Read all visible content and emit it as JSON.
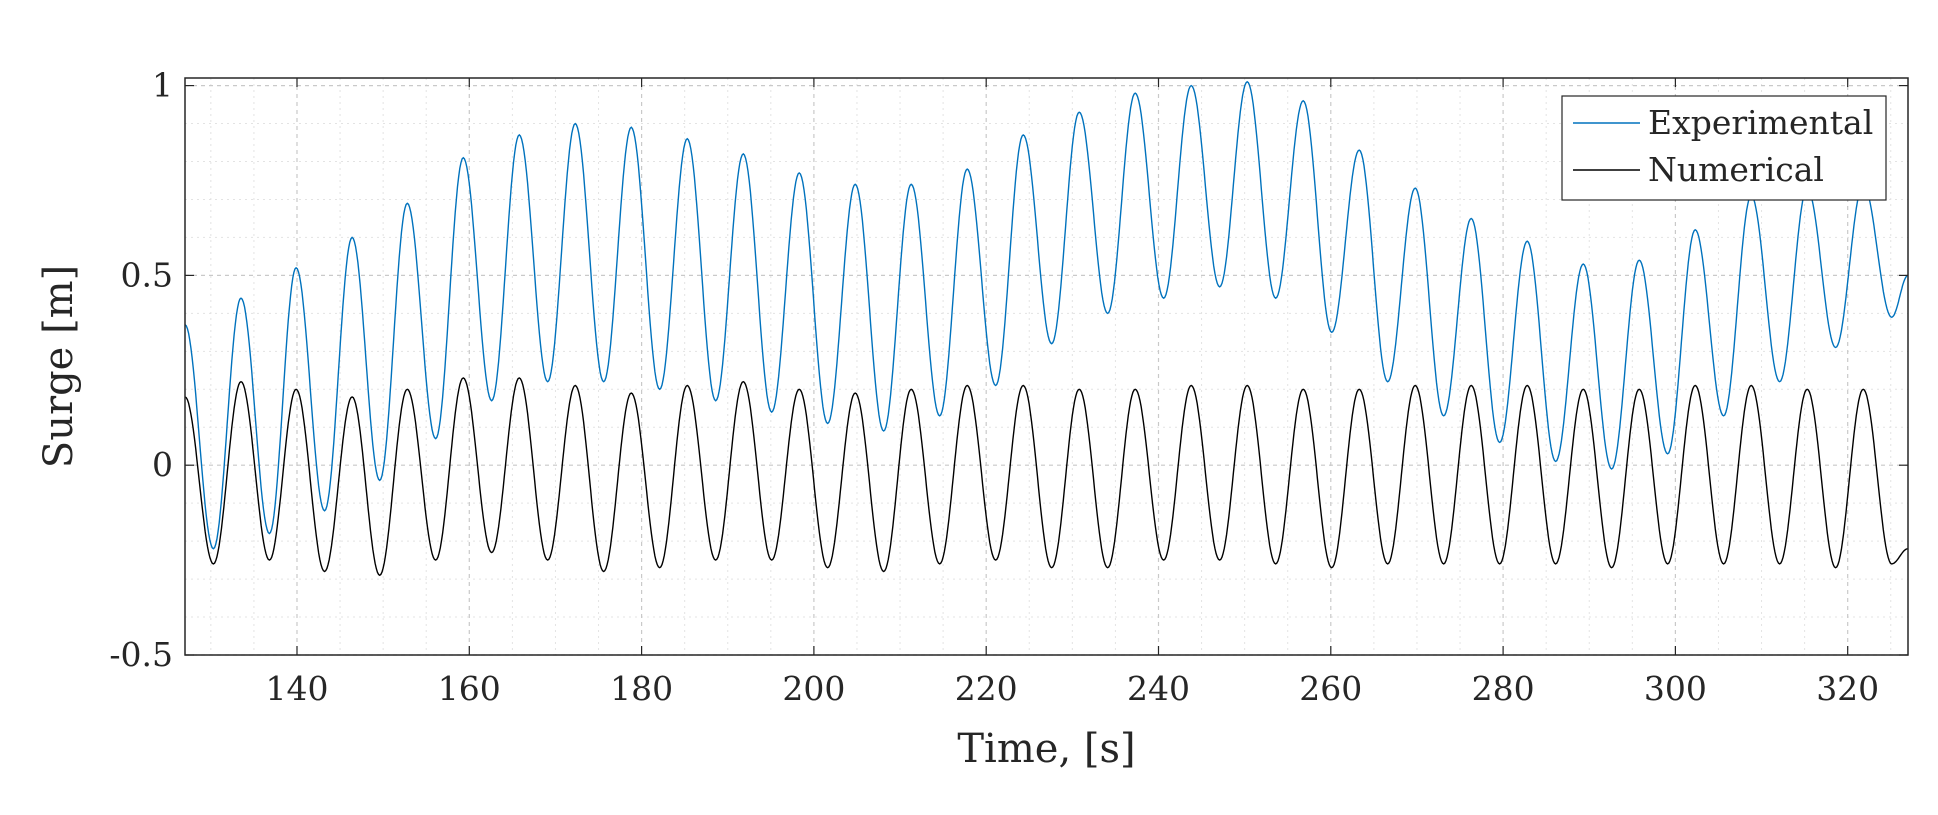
{
  "chart_data": {
    "type": "line",
    "xlabel": "Time, [s]",
    "ylabel": "Surge [m]",
    "xlim": [
      127,
      327
    ],
    "ylim": [
      -0.5,
      1.02
    ],
    "xticks": [
      140,
      160,
      180,
      200,
      220,
      240,
      260,
      280,
      300,
      320
    ],
    "xtick_labels": [
      "140",
      "160",
      "180",
      "200",
      "220",
      "240",
      "260",
      "280",
      "300",
      "320"
    ],
    "yticks": [
      -0.5,
      0,
      0.5,
      1
    ],
    "ytick_labels": [
      "-0.5",
      "0",
      "0.5",
      "1"
    ],
    "grid": true,
    "minor_grid": true,
    "legend_position": "top-right",
    "series": [
      {
        "name": "Experimental",
        "color": "#0072bd",
        "peaks": [
          {
            "t": 133.5,
            "v": 0.44
          },
          {
            "t": 139.9,
            "v": 0.52
          },
          {
            "t": 146.4,
            "v": 0.6
          },
          {
            "t": 152.8,
            "v": 0.69
          },
          {
            "t": 159.3,
            "v": 0.81
          },
          {
            "t": 165.8,
            "v": 0.87
          },
          {
            "t": 172.3,
            "v": 0.9
          },
          {
            "t": 178.8,
            "v": 0.89
          },
          {
            "t": 185.3,
            "v": 0.86
          },
          {
            "t": 191.8,
            "v": 0.82
          },
          {
            "t": 198.3,
            "v": 0.77
          },
          {
            "t": 204.8,
            "v": 0.74
          },
          {
            "t": 211.3,
            "v": 0.74
          },
          {
            "t": 217.8,
            "v": 0.78
          },
          {
            "t": 224.3,
            "v": 0.87
          },
          {
            "t": 230.8,
            "v": 0.93
          },
          {
            "t": 237.3,
            "v": 0.98
          },
          {
            "t": 243.8,
            "v": 1.0
          },
          {
            "t": 250.3,
            "v": 1.01
          },
          {
            "t": 256.8,
            "v": 0.96
          },
          {
            "t": 263.3,
            "v": 0.83
          },
          {
            "t": 269.8,
            "v": 0.73
          },
          {
            "t": 276.3,
            "v": 0.65
          },
          {
            "t": 282.8,
            "v": 0.59
          },
          {
            "t": 289.3,
            "v": 0.53
          },
          {
            "t": 295.8,
            "v": 0.54
          },
          {
            "t": 302.3,
            "v": 0.62
          },
          {
            "t": 308.8,
            "v": 0.71
          },
          {
            "t": 315.3,
            "v": 0.73
          },
          {
            "t": 321.8,
            "v": 0.74
          }
        ],
        "troughs": [
          {
            "t": 127.0,
            "v": 0.37
          },
          {
            "t": 130.3,
            "v": -0.22
          },
          {
            "t": 136.8,
            "v": -0.18
          },
          {
            "t": 143.2,
            "v": -0.12
          },
          {
            "t": 149.6,
            "v": -0.04
          },
          {
            "t": 156.1,
            "v": 0.07
          },
          {
            "t": 162.6,
            "v": 0.17
          },
          {
            "t": 169.1,
            "v": 0.22
          },
          {
            "t": 175.6,
            "v": 0.22
          },
          {
            "t": 182.1,
            "v": 0.2
          },
          {
            "t": 188.6,
            "v": 0.17
          },
          {
            "t": 195.1,
            "v": 0.14
          },
          {
            "t": 201.6,
            "v": 0.11
          },
          {
            "t": 208.1,
            "v": 0.09
          },
          {
            "t": 214.6,
            "v": 0.13
          },
          {
            "t": 221.1,
            "v": 0.21
          },
          {
            "t": 227.6,
            "v": 0.32
          },
          {
            "t": 234.1,
            "v": 0.4
          },
          {
            "t": 240.6,
            "v": 0.44
          },
          {
            "t": 247.1,
            "v": 0.47
          },
          {
            "t": 253.6,
            "v": 0.44
          },
          {
            "t": 260.1,
            "v": 0.35
          },
          {
            "t": 266.6,
            "v": 0.22
          },
          {
            "t": 273.1,
            "v": 0.13
          },
          {
            "t": 279.6,
            "v": 0.06
          },
          {
            "t": 286.1,
            "v": 0.01
          },
          {
            "t": 292.6,
            "v": -0.01
          },
          {
            "t": 299.1,
            "v": 0.03
          },
          {
            "t": 305.6,
            "v": 0.13
          },
          {
            "t": 312.1,
            "v": 0.22
          },
          {
            "t": 318.6,
            "v": 0.31
          },
          {
            "t": 325.1,
            "v": 0.39
          },
          {
            "t": 327.0,
            "v": 0.5
          }
        ]
      },
      {
        "name": "Numerical",
        "color": "#000000",
        "peaks": [
          {
            "t": 133.5,
            "v": 0.22
          },
          {
            "t": 139.9,
            "v": 0.2
          },
          {
            "t": 146.4,
            "v": 0.18
          },
          {
            "t": 152.8,
            "v": 0.2
          },
          {
            "t": 159.3,
            "v": 0.23
          },
          {
            "t": 165.8,
            "v": 0.23
          },
          {
            "t": 172.3,
            "v": 0.21
          },
          {
            "t": 178.8,
            "v": 0.19
          },
          {
            "t": 185.3,
            "v": 0.21
          },
          {
            "t": 191.8,
            "v": 0.22
          },
          {
            "t": 198.3,
            "v": 0.2
          },
          {
            "t": 204.8,
            "v": 0.19
          },
          {
            "t": 211.3,
            "v": 0.2
          },
          {
            "t": 217.8,
            "v": 0.21
          },
          {
            "t": 224.3,
            "v": 0.21
          },
          {
            "t": 230.8,
            "v": 0.2
          },
          {
            "t": 237.3,
            "v": 0.2
          },
          {
            "t": 243.8,
            "v": 0.21
          },
          {
            "t": 250.3,
            "v": 0.21
          },
          {
            "t": 256.8,
            "v": 0.2
          },
          {
            "t": 263.3,
            "v": 0.2
          },
          {
            "t": 269.8,
            "v": 0.21
          },
          {
            "t": 276.3,
            "v": 0.21
          },
          {
            "t": 282.8,
            "v": 0.21
          },
          {
            "t": 289.3,
            "v": 0.2
          },
          {
            "t": 295.8,
            "v": 0.2
          },
          {
            "t": 302.3,
            "v": 0.21
          },
          {
            "t": 308.8,
            "v": 0.21
          },
          {
            "t": 315.3,
            "v": 0.2
          },
          {
            "t": 321.8,
            "v": 0.2
          }
        ],
        "troughs": [
          {
            "t": 127.0,
            "v": 0.18
          },
          {
            "t": 130.3,
            "v": -0.26
          },
          {
            "t": 136.8,
            "v": -0.25
          },
          {
            "t": 143.2,
            "v": -0.28
          },
          {
            "t": 149.6,
            "v": -0.29
          },
          {
            "t": 156.1,
            "v": -0.25
          },
          {
            "t": 162.6,
            "v": -0.23
          },
          {
            "t": 169.1,
            "v": -0.25
          },
          {
            "t": 175.6,
            "v": -0.28
          },
          {
            "t": 182.1,
            "v": -0.27
          },
          {
            "t": 188.6,
            "v": -0.25
          },
          {
            "t": 195.1,
            "v": -0.25
          },
          {
            "t": 201.6,
            "v": -0.27
          },
          {
            "t": 208.1,
            "v": -0.28
          },
          {
            "t": 214.6,
            "v": -0.26
          },
          {
            "t": 221.1,
            "v": -0.25
          },
          {
            "t": 227.6,
            "v": -0.27
          },
          {
            "t": 234.1,
            "v": -0.27
          },
          {
            "t": 240.6,
            "v": -0.25
          },
          {
            "t": 247.1,
            "v": -0.25
          },
          {
            "t": 253.6,
            "v": -0.26
          },
          {
            "t": 260.1,
            "v": -0.27
          },
          {
            "t": 266.6,
            "v": -0.26
          },
          {
            "t": 273.1,
            "v": -0.26
          },
          {
            "t": 279.6,
            "v": -0.26
          },
          {
            "t": 286.1,
            "v": -0.26
          },
          {
            "t": 292.6,
            "v": -0.27
          },
          {
            "t": 299.1,
            "v": -0.26
          },
          {
            "t": 305.6,
            "v": -0.26
          },
          {
            "t": 312.1,
            "v": -0.26
          },
          {
            "t": 318.6,
            "v": -0.27
          },
          {
            "t": 325.1,
            "v": -0.26
          },
          {
            "t": 327.0,
            "v": -0.22
          }
        ]
      }
    ]
  }
}
